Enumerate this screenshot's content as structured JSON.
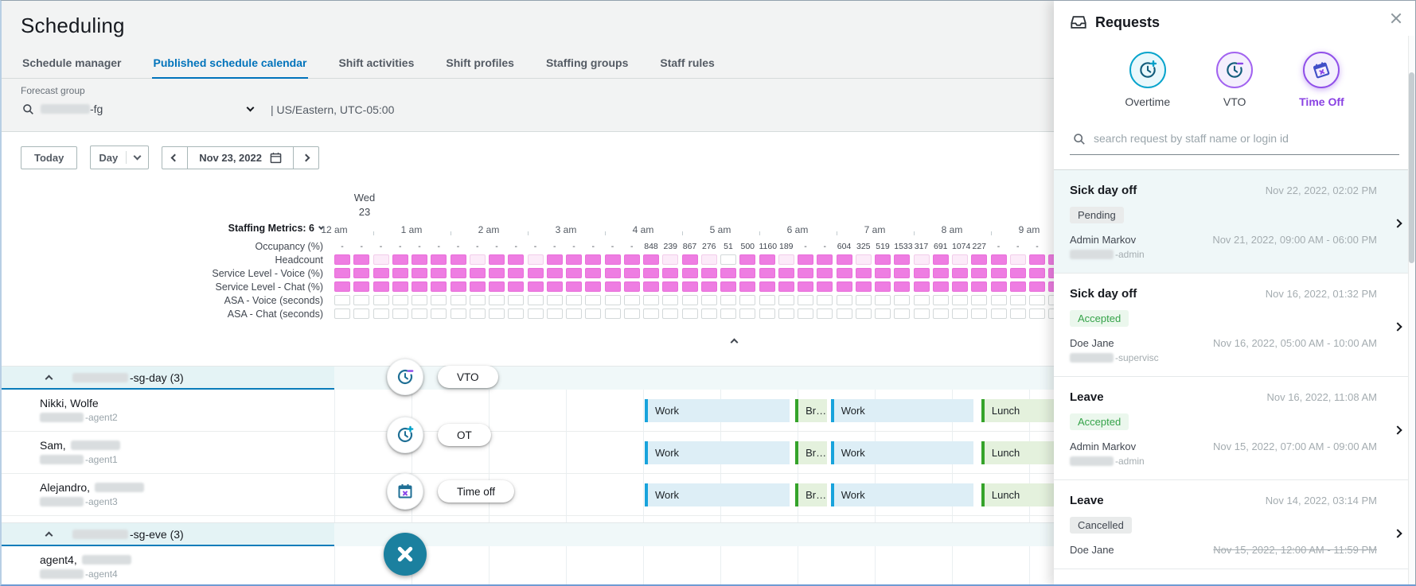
{
  "page": {
    "title": "Scheduling"
  },
  "tabs": [
    {
      "label": "Schedule manager",
      "active": false
    },
    {
      "label": "Published schedule calendar",
      "active": true
    },
    {
      "label": "Shift activities",
      "active": false
    },
    {
      "label": "Shift profiles",
      "active": false
    },
    {
      "label": "Staffing groups",
      "active": false
    },
    {
      "label": "Staff rules",
      "active": false
    }
  ],
  "forecast": {
    "label": "Forecast group",
    "value_suffix": "-fg",
    "value_prefix_redacted": true,
    "timezone": "| US/Eastern, UTC-05:00"
  },
  "toolbar": {
    "today_label": "Today",
    "view_label": "Day",
    "date_label": "Nov 23, 2022"
  },
  "calendar": {
    "day_name": "Wed",
    "day_number": "23",
    "metrics_toggle_label": "Staffing Metrics: 6",
    "hours": [
      "12 am",
      "1 am",
      "2 am",
      "3 am",
      "4 am",
      "5 am",
      "6 am",
      "7 am",
      "8 am",
      "9 am"
    ],
    "metrics": [
      {
        "name": "Occupancy (%)",
        "type": "values",
        "values": [
          "-",
          "-",
          "-",
          "-",
          "-",
          "-",
          "-",
          "-",
          "-",
          "-",
          "-",
          "-",
          "-",
          "-",
          "-",
          "-",
          "848",
          "239",
          "867",
          "276",
          "51",
          "500",
          "1160",
          "189",
          "-",
          "-",
          "604",
          "325",
          "519",
          "1533",
          "317",
          "691",
          "1074",
          "227",
          "-",
          "-",
          "-",
          "-"
        ]
      },
      {
        "name": "Headcount",
        "type": "cells",
        "pattern": "fflfffflfflfffffflflefflffflfflflfflff"
      },
      {
        "name": "Service Level - Voice (%)",
        "type": "cells",
        "pattern": "ffffffffffffffffffffffffffffffffffffff"
      },
      {
        "name": "Service Level - Chat (%)",
        "type": "cells",
        "pattern": "ffffffffffffffffffffffffffffffffffffff"
      },
      {
        "name": "ASA - Voice (seconds)",
        "type": "cells",
        "pattern": "eeeeeeeeeeeeeeeeeeeeeeeeeeeeeeeeeeeeee"
      },
      {
        "name": "ASA - Chat (seconds)",
        "type": "cells",
        "pattern": "eeeeeeeeeeeeeeeeeeeeeeeeeeeeeeeeeeeeee"
      }
    ],
    "groups": [
      {
        "name_suffix": "-sg-day (3)",
        "name_prefix_redacted": true,
        "agents": [
          {
            "name": "Nikki, Wolfe",
            "last_name_redacted": false,
            "login_suffix": "-agent2",
            "shift": [
              {
                "label": "Work",
                "type": "work",
                "start": 4.02,
                "end": 5.9
              },
              {
                "label": "Br…",
                "type": "break",
                "start": 5.97,
                "end": 6.38
              },
              {
                "label": "Work",
                "type": "work",
                "start": 6.43,
                "end": 8.28
              },
              {
                "label": "Lunch",
                "type": "lunch",
                "start": 8.38,
                "end": 10.1
              }
            ]
          },
          {
            "name": "Sam,",
            "last_name_redacted": true,
            "login_suffix": "-agent1",
            "shift": [
              {
                "label": "Work",
                "type": "work",
                "start": 4.02,
                "end": 5.9
              },
              {
                "label": "Br…",
                "type": "break",
                "start": 5.97,
                "end": 6.38
              },
              {
                "label": "Work",
                "type": "work",
                "start": 6.43,
                "end": 8.28
              },
              {
                "label": "Lunch",
                "type": "lunch",
                "start": 8.38,
                "end": 10.1
              }
            ]
          },
          {
            "name": "Alejandro,",
            "last_name_redacted": true,
            "login_suffix": "-agent3",
            "shift": [
              {
                "label": "Work",
                "type": "work",
                "start": 4.02,
                "end": 5.9
              },
              {
                "label": "Br…",
                "type": "break",
                "start": 5.97,
                "end": 6.38
              },
              {
                "label": "Work",
                "type": "work",
                "start": 6.43,
                "end": 8.28
              },
              {
                "label": "Lunch",
                "type": "lunch",
                "start": 8.38,
                "end": 10.1
              }
            ]
          }
        ]
      },
      {
        "name_suffix": "-sg-eve (3)",
        "name_prefix_redacted": true,
        "agents": [
          {
            "name": "agent4,",
            "last_name_redacted": true,
            "login_suffix": "-agent4",
            "shift": []
          }
        ]
      }
    ]
  },
  "fab": {
    "items": [
      {
        "label": "VTO",
        "icon": "clock-minus-icon"
      },
      {
        "label": "OT",
        "icon": "clock-plus-icon"
      },
      {
        "label": "Time off",
        "icon": "calendar-x-icon"
      }
    ],
    "close_icon": "close-icon"
  },
  "requests_panel": {
    "title": "Requests",
    "types": [
      {
        "label": "Overtime",
        "icon": "clock-plus-icon",
        "style": "cyan",
        "active": false
      },
      {
        "label": "VTO",
        "icon": "clock-minus-icon",
        "style": "purple",
        "active": false
      },
      {
        "label": "Time Off",
        "icon": "calendar-tilted-icon",
        "style": "purple",
        "active": true
      }
    ],
    "search_placeholder": "search request by staff name or login id",
    "cards": [
      {
        "title": "Sick day off",
        "timestamp": "Nov 22, 2022, 02:02 PM",
        "status": "Pending",
        "requester": "Admin Markov",
        "login_suffix": "-admin",
        "login_prefix_redacted": true,
        "period": "Nov 21, 2022, 09:00 AM - 06:00 PM",
        "selected": true,
        "period_strikethrough": false
      },
      {
        "title": "Sick day off",
        "timestamp": "Nov 16, 2022, 01:32 PM",
        "status": "Accepted",
        "requester": "Doe Jane",
        "login_suffix": "-supervisc",
        "login_prefix_redacted": true,
        "period": "Nov 16, 2022, 05:00 AM - 10:00 AM",
        "selected": false,
        "period_strikethrough": false
      },
      {
        "title": "Leave",
        "timestamp": "Nov 16, 2022, 11:08 AM",
        "status": "Accepted",
        "requester": "Admin Markov",
        "login_suffix": "-admin",
        "login_prefix_redacted": true,
        "period": "Nov 15, 2022, 07:00 AM - 09:00 AM",
        "selected": false,
        "period_strikethrough": false
      },
      {
        "title": "Leave",
        "timestamp": "Nov 14, 2022, 03:14 PM",
        "status": "Cancelled",
        "requester": "Doe Jane",
        "login_suffix": null,
        "login_prefix_redacted": false,
        "period": "Nov 15, 2022, 12:00 AM - 11:59 PM",
        "selected": false,
        "period_strikethrough": true
      }
    ]
  },
  "colors": {
    "accent_blue": "#0073bb",
    "heat_magenta": "#ee7de2",
    "heat_light": "#fcebf9",
    "work_edge": "#18a3dc",
    "break_edge": "#35a32a",
    "group_teal": "#e4f3f5",
    "fab_close_teal": "#1b809f",
    "purple_active": "#9050e9",
    "cyan_type": "#08a4cc",
    "badge_green_text": "#35a349"
  }
}
